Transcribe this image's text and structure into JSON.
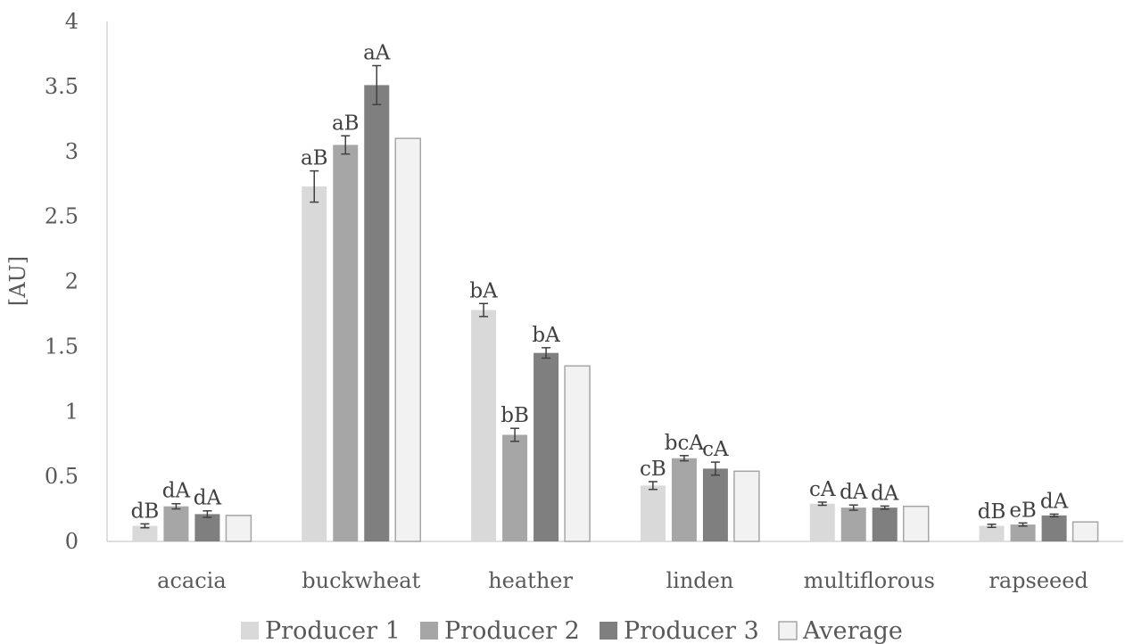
{
  "chart_data": {
    "type": "bar",
    "title": "",
    "xlabel": "",
    "ylabel": "[AU]",
    "ylim": [
      0,
      4
    ],
    "yticks": [
      0,
      0.5,
      1,
      1.5,
      2,
      2.5,
      3,
      3.5,
      4
    ],
    "ytick_labels": [
      "0",
      "0.5",
      "1",
      "1.5",
      "2",
      "2.5",
      "3",
      "3.5",
      "4"
    ],
    "grid": false,
    "legend_position": "bottom",
    "categories": [
      "acacia",
      "buckwheat",
      "heather",
      "linden",
      "multiflorous",
      "rapseeed"
    ],
    "series": [
      {
        "name": "Producer 1",
        "color": "#d9d9d9",
        "values": [
          0.12,
          2.73,
          1.78,
          0.43,
          0.29,
          0.12
        ],
        "errors": [
          0.015,
          0.12,
          0.05,
          0.03,
          0.012,
          0.012
        ],
        "labels": [
          "dB",
          "aB",
          "bA",
          "cB",
          "cA",
          "dB"
        ]
      },
      {
        "name": "Producer 2",
        "color": "#a6a6a6",
        "values": [
          0.27,
          3.05,
          0.82,
          0.64,
          0.26,
          0.13
        ],
        "errors": [
          0.02,
          0.07,
          0.05,
          0.02,
          0.02,
          0.012
        ],
        "labels": [
          "dA",
          "aB",
          "bB",
          "bcA",
          "dA",
          "eB"
        ]
      },
      {
        "name": "Producer 3",
        "color": "#7f7f7f",
        "values": [
          0.21,
          3.51,
          1.45,
          0.56,
          0.26,
          0.2
        ],
        "errors": [
          0.025,
          0.15,
          0.04,
          0.05,
          0.012,
          0.01
        ],
        "labels": [
          "dA",
          "aA",
          "bA",
          "cA",
          "dA",
          "dA"
        ]
      },
      {
        "name": "Average",
        "color": "#f2f2f2",
        "values": [
          0.2,
          3.1,
          1.35,
          0.54,
          0.27,
          0.15
        ],
        "errors": null,
        "labels": [
          "",
          "",
          "",
          "",
          "",
          ""
        ]
      }
    ]
  }
}
